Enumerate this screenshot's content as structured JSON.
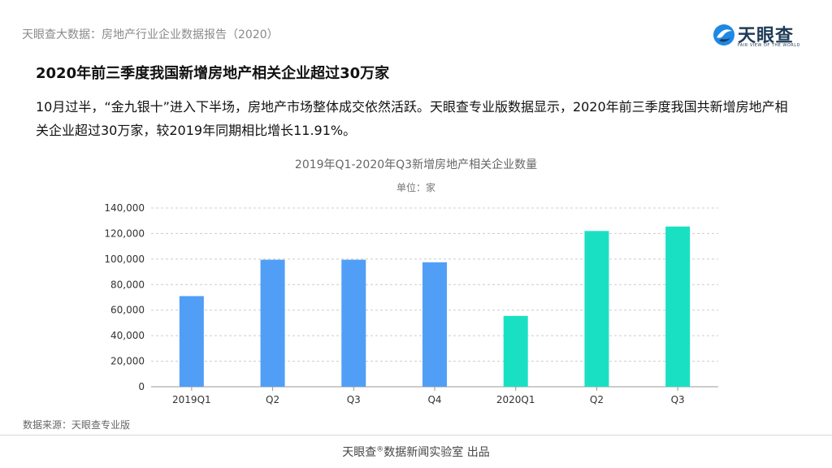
{
  "header": {
    "title": "天眼查大数据：房地产行业企业数据报告（2020）"
  },
  "logo": {
    "name": "天眼查",
    "tagline": "FAIR VIEW OF THE WORLD",
    "icon": "tianyancha-logo-icon"
  },
  "headline": "2020年前三季度我国新增房地产相关企业超过30万家",
  "body_text": "10月过半，“金九银十”进入下半场，房地产市场整体成交依然活跃。天眼查专业版数据显示，2020年前三季度我国共新增房地产相关企业超过30万家，较2019年同期相比增长11.91%。",
  "chart_data": {
    "type": "bar",
    "title": "2019年Q1-2020年Q3新增房地产相关企业数量",
    "subtitle": "单位：家",
    "categories": [
      "2019Q1",
      "Q2",
      "Q3",
      "Q4",
      "2020Q1",
      "Q2",
      "Q3"
    ],
    "values": [
      71000,
      99500,
      99500,
      97500,
      55500,
      122000,
      125500
    ],
    "bar_colors": [
      "#519EF7",
      "#519EF7",
      "#519EF7",
      "#519EF7",
      "#1AE0C3",
      "#1AE0C3",
      "#1AE0C3"
    ],
    "yticks": [
      "0",
      "20,000",
      "40,000",
      "60,000",
      "80,000",
      "100,000",
      "120,000",
      "140,000"
    ],
    "ylim": [
      0,
      140000
    ],
    "grid": true
  },
  "source": "数据来源：天眼查专业版",
  "footer": {
    "brand": "天眼查",
    "registered": "®",
    "text": "数据新闻实验室 出品"
  }
}
